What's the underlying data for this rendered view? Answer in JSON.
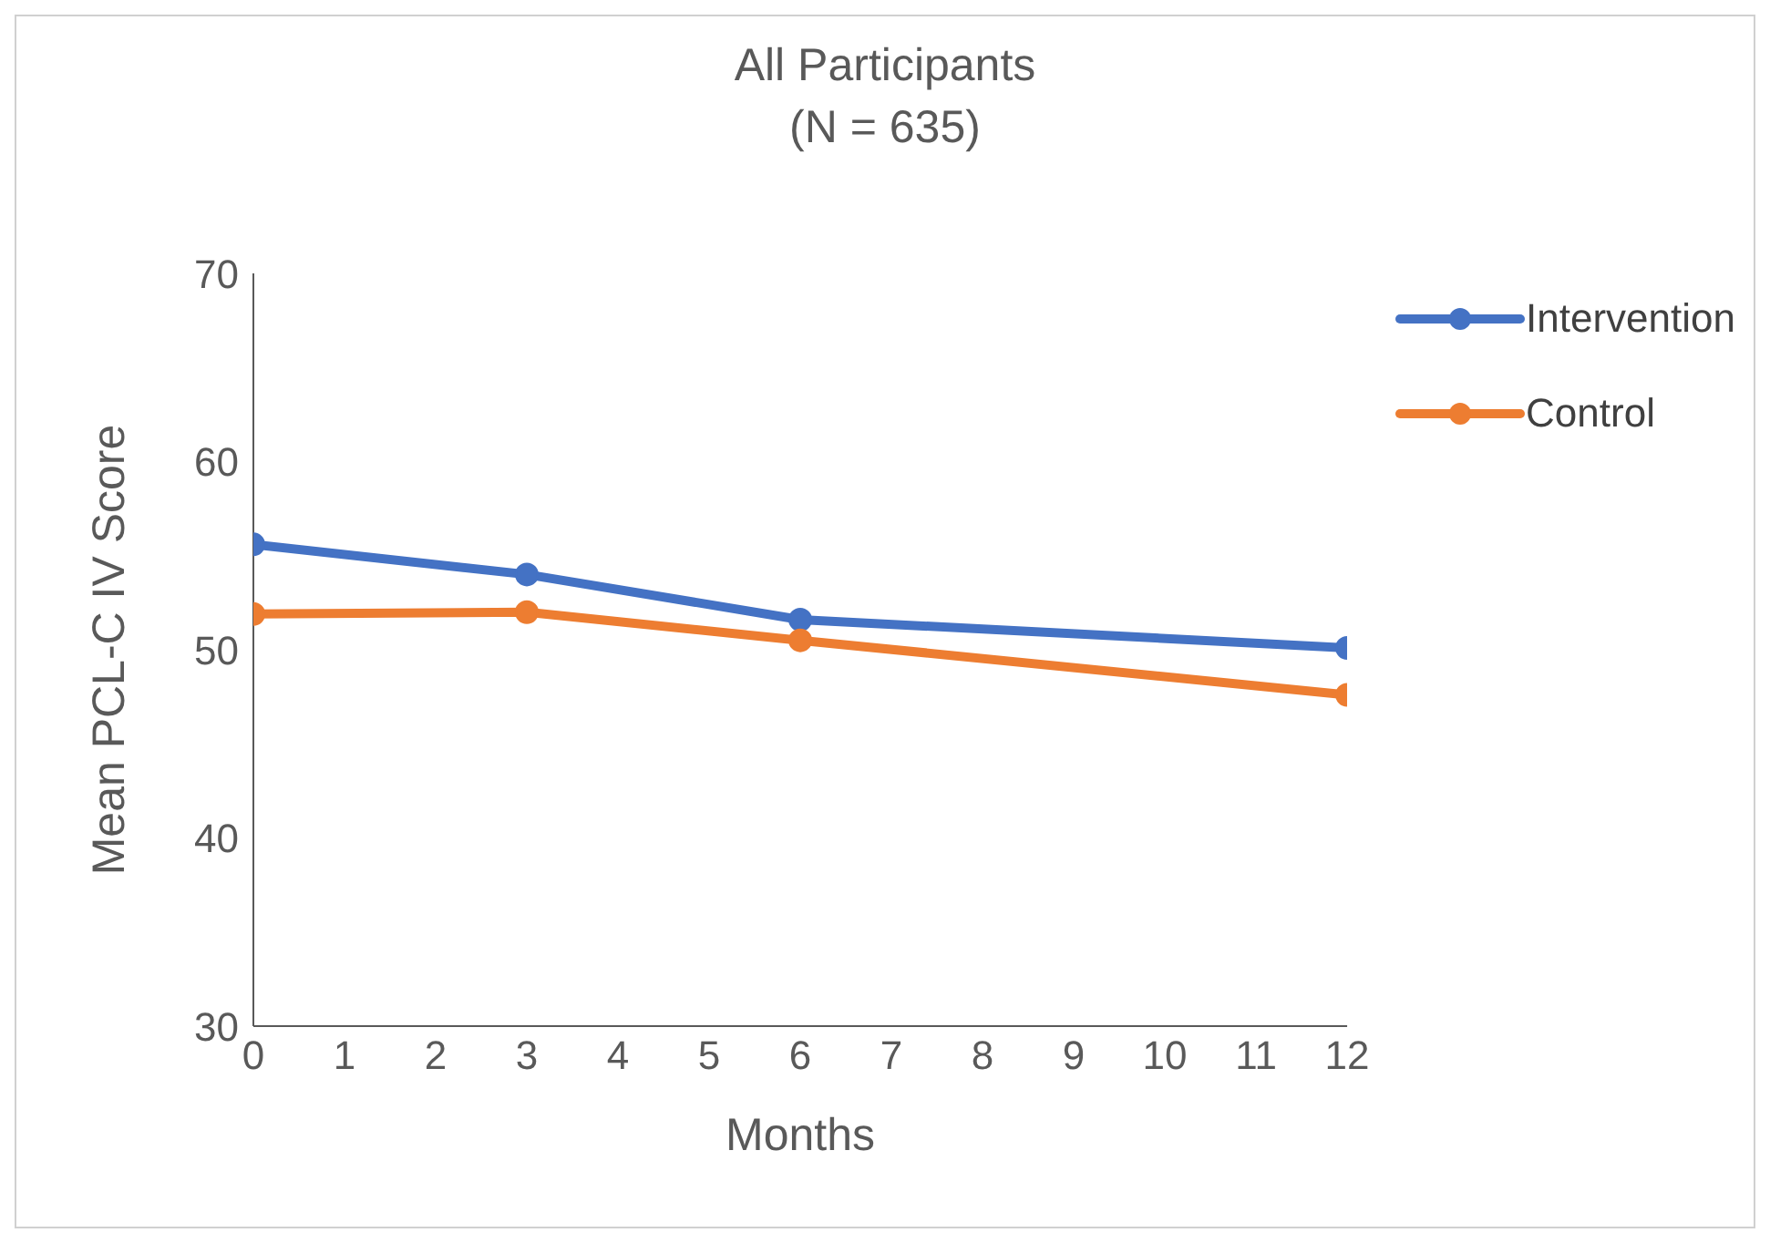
{
  "chart_data": {
    "type": "line",
    "title": "All Participants",
    "subtitle": "(N = 635)",
    "xlabel": "Months",
    "ylabel": "Mean PCL-C IV Score",
    "x": [
      0,
      3,
      6,
      12
    ],
    "series": [
      {
        "name": "Intervention",
        "color": "#4472c4",
        "values": [
          55.6,
          54.0,
          51.6,
          50.1
        ]
      },
      {
        "name": "Control",
        "color": "#ed7d31",
        "values": [
          51.9,
          52.0,
          50.5,
          47.6
        ]
      }
    ],
    "xlim": [
      0,
      12
    ],
    "xticks": [
      0,
      1,
      2,
      3,
      4,
      5,
      6,
      7,
      8,
      9,
      10,
      11,
      12
    ],
    "ylim": [
      30,
      70
    ],
    "yticks": [
      30,
      40,
      50,
      60,
      70
    ],
    "grid": false,
    "legend": "top right",
    "marker": "circle",
    "line_style": "solid"
  }
}
